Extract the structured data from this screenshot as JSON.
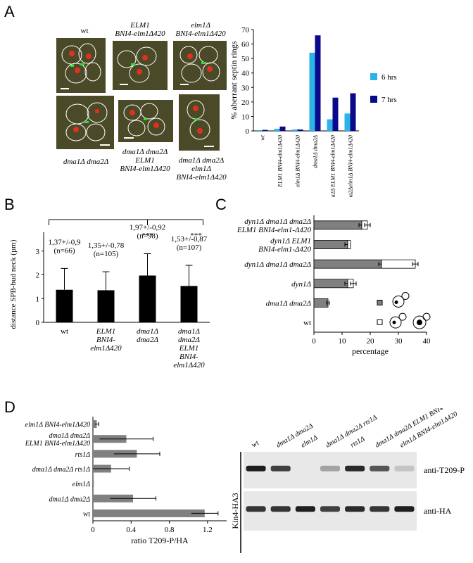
{
  "panel_letters": {
    "a": "A",
    "b": "B",
    "c": "C",
    "d": "D"
  },
  "panel_a": {
    "micrograph_labels": [
      {
        "lines": [
          "wt"
        ],
        "italic": false
      },
      {
        "lines": [
          "ELM1",
          "BNI4-elm1Δ420"
        ],
        "italic": true
      },
      {
        "lines": [
          "elm1Δ",
          "BNI4-elm1Δ420"
        ],
        "italic": true
      },
      {
        "lines": [
          "dma1Δ dma2Δ"
        ],
        "italic": true
      },
      {
        "lines": [
          "dma1Δ dma2Δ",
          "ELM1",
          "BNI4-elm1Δ420"
        ],
        "italic": true
      },
      {
        "lines": [
          "dma1Δ dma2Δ",
          "elm1Δ",
          "BNI4-elm1Δ420"
        ],
        "italic": true
      }
    ]
  },
  "chart_data": [
    {
      "id": "A-chart",
      "type": "bar",
      "ylabel": "% aberrant septin rings",
      "ylim": [
        0,
        70
      ],
      "yticks": [
        0,
        10,
        20,
        30,
        40,
        50,
        60,
        70
      ],
      "categories": [
        "wt",
        "ELM1 BNI4-elm1Δ420",
        "elm1Δ BNI4-elm1Δ420",
        "dma1Δ dma2Δ",
        "dma1Δ dma2Δ ELM1 BNI4-elm1Δ420",
        "dma1Δ dma2Δelm1Δ BNI4-elm1Δ420"
      ],
      "series": [
        {
          "name": "6 hrs",
          "color": "#2ab4e8",
          "values": [
            0.5,
            1.5,
            1,
            54,
            8,
            12
          ]
        },
        {
          "name": "7 hrs",
          "color": "#0a0a8c",
          "values": [
            0.7,
            3,
            1,
            66,
            23,
            26
          ]
        }
      ],
      "legend": "right"
    },
    {
      "id": "B-chart",
      "type": "bar",
      "ylabel": "distance SPB-bud neck (µm)",
      "ylim": [
        0,
        3
      ],
      "yticks": [
        0,
        1,
        2,
        3
      ],
      "categories": [
        "wt",
        "ELM1 BNI4-elm1Δ420",
        "dma1Δ dma2Δ",
        "dma1Δ dma2Δ ELM1 BNI4-elm1Δ420"
      ],
      "values": [
        1.37,
        1.35,
        1.97,
        1.53
      ],
      "errors": [
        0.9,
        0.78,
        0.92,
        0.87
      ],
      "annotations": [
        "1,37+/-0,9",
        "1,35+/-0,78",
        "1,97+/-0,92",
        "1,53+/-0,87"
      ],
      "counts": [
        "(n=66)",
        "(n=105)",
        "(n=98)",
        "(n=107)"
      ],
      "significance": [
        "***",
        "***"
      ],
      "color": "#000000"
    },
    {
      "id": "C-chart",
      "type": "bar",
      "orientation": "horizontal",
      "stacked": true,
      "xlabel": "percentage",
      "xlim": [
        0,
        40
      ],
      "xticks": [
        0,
        10,
        20,
        30,
        40
      ],
      "categories": [
        "wt",
        "dma1Δ dma2Δ",
        "dyn1Δ",
        "dyn1Δ dma1Δ dma2Δ",
        "dyn1Δ ELM1 BNI4-elm1-Δ420",
        "dyn1Δ dma1Δ dma2Δ ELM1 BNI4-elm1-Δ420"
      ],
      "series": [
        {
          "name": "",
          "color": "#808080",
          "values": [
            0,
            5,
            12,
            24,
            12,
            17
          ],
          "errors": [
            0,
            0.5,
            1,
            1,
            1,
            1
          ]
        },
        {
          "name": "",
          "color": "#ffffff",
          "values": [
            0,
            0,
            2,
            12,
            1,
            2
          ],
          "errors": [
            0,
            0,
            1,
            1,
            0,
            1
          ]
        }
      ]
    },
    {
      "id": "D-chart",
      "type": "bar",
      "orientation": "horizontal",
      "xlabel": "ratio T209-P/HA",
      "xlim": [
        0,
        1.4
      ],
      "xticks": [
        "0",
        "0.4",
        "0.8",
        "1.2"
      ],
      "xtick_values": [
        0,
        0.4,
        0.8,
        1.2
      ],
      "categories": [
        "wt",
        "dma1Δ dma2Δ",
        "elm1Δ",
        "dma1Δ dma2Δ rts1Δ",
        "rts1Δ",
        "dma1Δ dma2Δ ELM1 BNI4-elm1Δ420",
        "elm1Δ BNI4-elm1Δ420"
      ],
      "values": [
        1.17,
        0.42,
        0.01,
        0.19,
        0.46,
        0.35,
        0.04
      ],
      "errors": [
        0.14,
        0.24,
        0.0,
        0.19,
        0.24,
        0.28,
        0.02
      ],
      "color": "#808080"
    }
  ],
  "panel_d_blot": {
    "lanes": [
      "wt",
      "dma1Δ dma2Δ",
      "elm1Δ",
      "dma1Δ dma2Δ rts1Δ",
      "rts1Δ",
      "dma1Δ dma2Δ ELM1 BNI4-elm1Δ420",
      "elm1Δ BNI4-elm1Δ420"
    ],
    "side_label": "Kin4-HA3",
    "rows": [
      {
        "label": "anti-T209-P",
        "intensities": [
          0.95,
          0.8,
          0.0,
          0.35,
          0.9,
          0.7,
          0.2
        ]
      },
      {
        "label": "anti-HA",
        "intensities": [
          0.85,
          0.85,
          0.95,
          0.8,
          0.9,
          0.85,
          0.95
        ]
      }
    ]
  }
}
